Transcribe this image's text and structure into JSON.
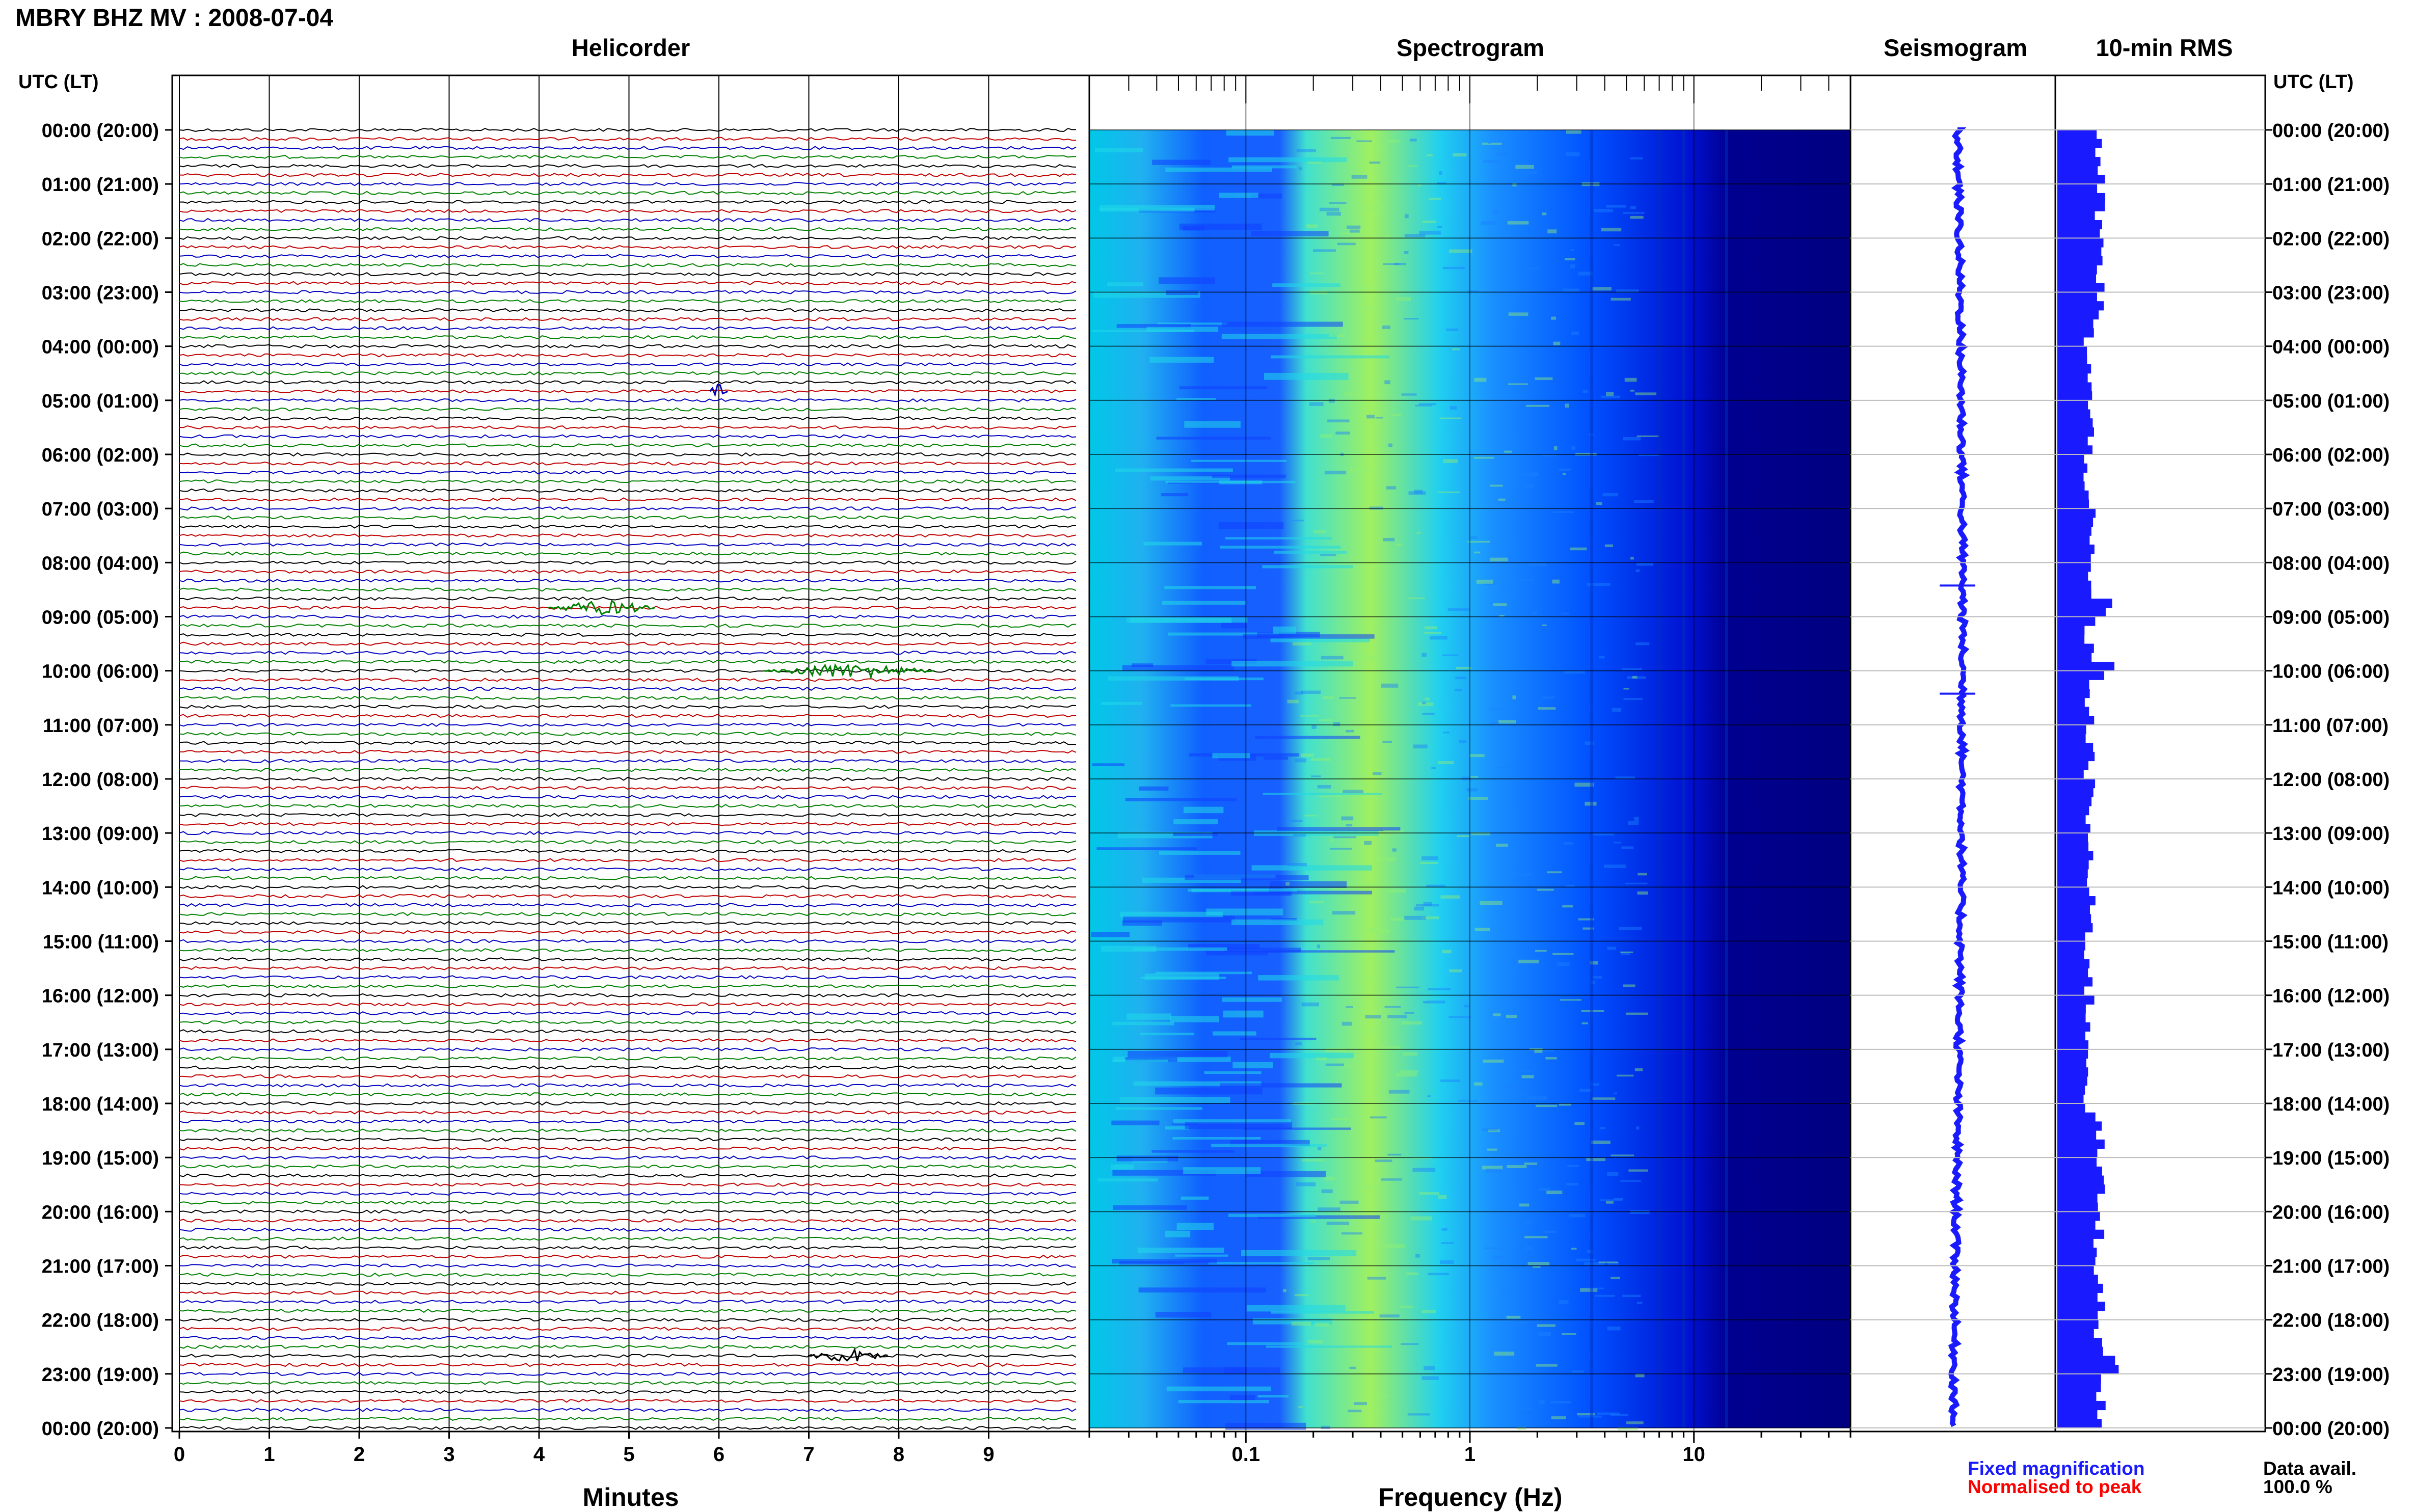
{
  "header": {
    "title": "MBRY BHZ MV : 2008-07-04"
  },
  "panels": {
    "helicorder": "Helicorder",
    "spectrogram": "Spectrogram",
    "seismogram": "Seismogram",
    "rms": "10-min RMS"
  },
  "time_axis": {
    "header_left": "UTC (LT)",
    "header_right": "UTC (LT)",
    "labels": [
      "00:00 (20:00)",
      "01:00 (21:00)",
      "02:00 (22:00)",
      "03:00 (23:00)",
      "04:00 (00:00)",
      "05:00 (01:00)",
      "06:00 (02:00)",
      "07:00 (03:00)",
      "08:00 (04:00)",
      "09:00 (05:00)",
      "10:00 (06:00)",
      "11:00 (07:00)",
      "12:00 (08:00)",
      "13:00 (09:00)",
      "14:00 (10:00)",
      "15:00 (11:00)",
      "16:00 (12:00)",
      "17:00 (13:00)",
      "18:00 (14:00)",
      "19:00 (15:00)",
      "20:00 (16:00)",
      "21:00 (17:00)",
      "22:00 (18:00)",
      "23:00 (19:00)",
      "00:00 (20:00)"
    ]
  },
  "x_axes": {
    "minutes_label": "Minutes",
    "minutes_ticks": [
      "0",
      "1",
      "2",
      "3",
      "4",
      "5",
      "6",
      "7",
      "8",
      "9"
    ],
    "frequency_label": "Frequency (Hz)",
    "frequency_ticks": [
      "0.1",
      "1",
      "10"
    ]
  },
  "legend": {
    "fixed": "Fixed magnification",
    "normalised": "Normalised to peak",
    "fixed_color": "#1a1aff",
    "normalised_color": "#ff0000"
  },
  "data_availability": {
    "label": "Data avail.",
    "value": "100.0 %"
  },
  "chart_data": [
    {
      "type": "helicorder",
      "title": "Helicorder",
      "xlabel": "Minutes",
      "x_range_minutes": [
        0,
        10
      ],
      "rows": 144,
      "row_duration_minutes": 10,
      "trace_colors": [
        "#000000",
        "#c00000",
        "#0000c0",
        "#008000"
      ],
      "events": [
        {
          "utc": "04:50",
          "minute_start": 5.9,
          "minute_end": 6.1,
          "color": "#0000c0"
        },
        {
          "utc": "08:50",
          "minute_start": 4.1,
          "minute_end": 5.3,
          "color": "#008000"
        },
        {
          "utc": "10:00",
          "minute_start": 6.5,
          "minute_end": 8.4,
          "color": "#008000"
        },
        {
          "utc": "22:40",
          "minute_start": 7.0,
          "minute_end": 7.9,
          "color": "#000000"
        }
      ]
    },
    {
      "type": "heatmap",
      "title": "Spectrogram",
      "xlabel": "Frequency (Hz)",
      "x_scale": "log",
      "x_range_hz": [
        0.02,
        50
      ],
      "peak_band_hz": [
        0.2,
        1.0
      ],
      "colormap": [
        "#000080",
        "#0000ff",
        "#1e7fff",
        "#00d8f0",
        "#a0f060"
      ]
    },
    {
      "type": "line",
      "title": "Seismogram",
      "spikes_utc": [
        "08:00",
        "10:00"
      ]
    },
    {
      "type": "bar",
      "title": "10-min RMS",
      "orientation": "horizontal",
      "interval_minutes": 10,
      "bar_color": "#1a1aff",
      "peaks_utc": [
        "08:40",
        "09:50",
        "22:40"
      ]
    }
  ]
}
